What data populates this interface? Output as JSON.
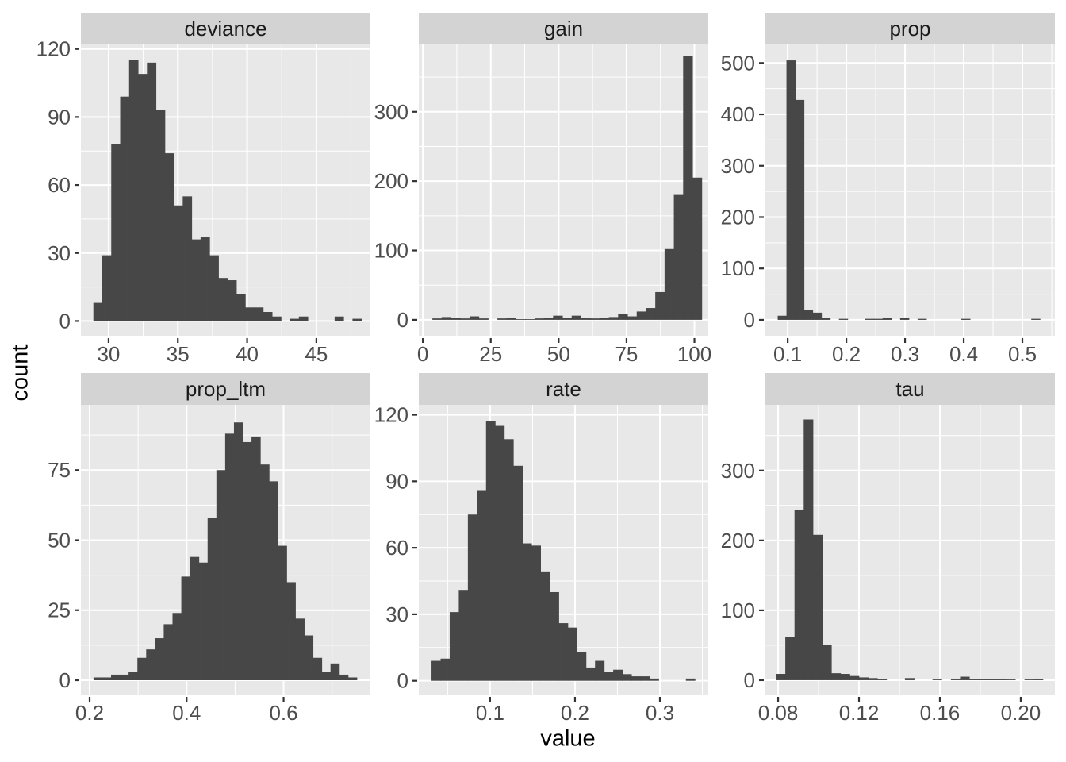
{
  "chart_data": {
    "type": "bar",
    "subtype": "faceted-histogram",
    "title": "",
    "xlabel": "value",
    "ylabel": "count",
    "legend": "none",
    "grid": "on",
    "colors": {
      "bar_fill": "#474747",
      "panel_bg": "#E8E8E8",
      "strip_bg": "#D3D3D3",
      "grid_line": "#FFFFFF",
      "tick_mark": "#333333",
      "tick_label": "#4D4D4D",
      "strip_text": "#1A1A1A",
      "axis_title_text": "#000000",
      "background": "#FFFFFF"
    },
    "facets": [
      {
        "label": "deviance",
        "col": 0,
        "row": 0,
        "xlim": [
          28.0,
          48.9
        ],
        "ylim": [
          -6.5,
          122
        ],
        "xticks": [
          30,
          35,
          40,
          45
        ],
        "xtick_labels": [
          "30",
          "35",
          "40",
          "45"
        ],
        "yticks": [
          0,
          30,
          60,
          90,
          120
        ],
        "ytick_labels": [
          "0",
          "30",
          "60",
          "90",
          "120"
        ],
        "bin_start": 28.9,
        "bin_width": 0.645,
        "counts": [
          8,
          29,
          78,
          99,
          115,
          109,
          114,
          93,
          74,
          51,
          55,
          36,
          37,
          29,
          19,
          18,
          12,
          6,
          6,
          4,
          2,
          0,
          1,
          2,
          0,
          0,
          0,
          2,
          0,
          1
        ]
      },
      {
        "label": "gain",
        "col": 1,
        "row": 0,
        "xlim": [
          -1.5,
          105.1
        ],
        "ylim": [
          -23,
          397
        ],
        "xticks": [
          0,
          25,
          50,
          75,
          100
        ],
        "xtick_labels": [
          "0",
          "25",
          "50",
          "75",
          "100"
        ],
        "yticks": [
          0,
          100,
          200,
          300
        ],
        "ytick_labels": [
          "0",
          "100",
          "200",
          "300"
        ],
        "bin_start": 3.5,
        "bin_width": 3.42,
        "counts": [
          2,
          4,
          3,
          2,
          5,
          2,
          0,
          2,
          3,
          1,
          1,
          2,
          3,
          6,
          3,
          6,
          3,
          2,
          3,
          4,
          9,
          5,
          12,
          17,
          40,
          102,
          180,
          380,
          205
        ]
      },
      {
        "label": "prop",
        "col": 2,
        "row": 0,
        "xlim": [
          0.062,
          0.5554
        ],
        "ylim": [
          -31,
          536
        ],
        "xticks": [
          0.1,
          0.2,
          0.3,
          0.4,
          0.5
        ],
        "xtick_labels": [
          "0.1",
          "0.2",
          "0.3",
          "0.4",
          "0.5"
        ],
        "yticks": [
          0,
          100,
          200,
          300,
          400,
          500
        ],
        "ytick_labels": [
          "0",
          "100",
          "200",
          "300",
          "400",
          "500"
        ],
        "bin_start": 0.083,
        "bin_width": 0.0149,
        "counts": [
          8,
          505,
          428,
          20,
          14,
          4,
          0,
          2,
          0,
          0,
          2,
          2,
          3,
          0,
          3,
          0,
          2,
          0,
          0,
          0,
          0,
          2,
          0,
          0,
          0,
          0,
          0,
          0,
          0,
          2
        ]
      },
      {
        "label": "prop_ltm",
        "col": 0,
        "row": 1,
        "xlim": [
          0.182,
          0.779
        ],
        "ylim": [
          -5.1,
          98.3
        ],
        "xticks": [
          0.2,
          0.4,
          0.6
        ],
        "xtick_labels": [
          "0.2",
          "0.4",
          "0.6"
        ],
        "yticks": [
          0,
          25,
          50,
          75
        ],
        "ytick_labels": [
          "0",
          "25",
          "50",
          "75"
        ],
        "bin_start": 0.208,
        "bin_width": 0.0181,
        "counts": [
          1,
          1,
          2,
          2,
          3,
          8,
          11,
          15,
          20,
          24,
          37,
          44,
          42,
          58,
          75,
          88,
          92,
          85,
          87,
          77,
          71,
          48,
          35,
          22,
          16,
          8,
          3,
          6,
          2,
          1
        ]
      },
      {
        "label": "rate",
        "col": 1,
        "row": 1,
        "xlim": [
          0.016,
          0.357
        ],
        "ylim": [
          -6.2,
          124.5
        ],
        "xticks": [
          0.1,
          0.2,
          0.3
        ],
        "xtick_labels": [
          "0.1",
          "0.2",
          "0.3"
        ],
        "yticks": [
          0,
          30,
          60,
          90,
          120
        ],
        "ytick_labels": [
          "0",
          "30",
          "60",
          "90",
          "120"
        ],
        "bin_start": 0.031,
        "bin_width": 0.0107,
        "counts": [
          9,
          10,
          31,
          41,
          75,
          86,
          117,
          115,
          109,
          97,
          62,
          61,
          49,
          40,
          26,
          24,
          13,
          6,
          9,
          4,
          5,
          3,
          2,
          2,
          1,
          0,
          0,
          0,
          1,
          0
        ]
      },
      {
        "label": "tau",
        "col": 2,
        "row": 1,
        "xlim": [
          0.0737,
          0.2169
        ],
        "ylim": [
          -20.5,
          394
        ],
        "xticks": [
          0.08,
          0.12,
          0.16,
          0.2
        ],
        "xtick_labels": [
          "0.08",
          "0.12",
          "0.16",
          "0.20"
        ],
        "yticks": [
          0,
          100,
          200,
          300
        ],
        "ytick_labels": [
          "0",
          "100",
          "200",
          "300"
        ],
        "bin_start": 0.079,
        "bin_width": 0.00455,
        "counts": [
          9,
          62,
          243,
          373,
          208,
          50,
          10,
          9,
          6,
          4,
          3,
          2,
          0,
          0,
          3,
          0,
          0,
          1,
          0,
          2,
          5,
          2,
          2,
          2,
          2,
          1,
          0,
          1,
          2,
          0
        ]
      }
    ]
  }
}
